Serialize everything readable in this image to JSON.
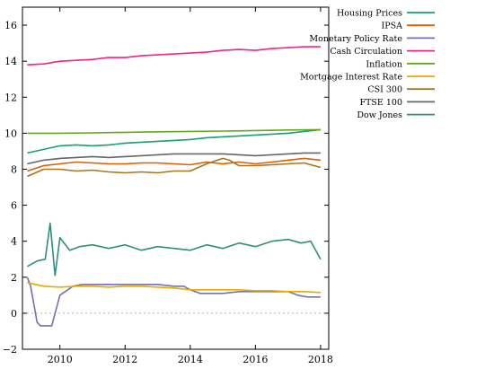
{
  "chart_data": {
    "type": "line",
    "title": "",
    "xlabel": "",
    "ylabel": "",
    "xlim": [
      2008.85,
      2018.25
    ],
    "ylim": [
      -2,
      17
    ],
    "x_ticks": [
      2010,
      2012,
      2014,
      2016,
      2018
    ],
    "x_tick_labels": [
      "2010",
      "2012",
      "2014",
      "2016",
      "2018"
    ],
    "y_ticks": [
      -2,
      0,
      2,
      4,
      6,
      8,
      10,
      12,
      14,
      16
    ],
    "y_tick_labels": [
      "−2",
      "0",
      "2",
      "4",
      "6",
      "8",
      "10",
      "12",
      "14",
      "16"
    ],
    "zero_line": true,
    "grid": false,
    "legend_position": "outside-right",
    "series": [
      {
        "name": "Housing Prices",
        "color": "#1a9e77",
        "x": [
          2009.0,
          2009.5,
          2010.0,
          2010.5,
          2011.0,
          2011.5,
          2012.0,
          2012.5,
          2013.0,
          2013.5,
          2014.0,
          2014.5,
          2015.0,
          2015.5,
          2016.0,
          2016.5,
          2017.0,
          2017.5,
          2018.0
        ],
        "values": [
          8.9,
          9.1,
          9.3,
          9.35,
          9.3,
          9.35,
          9.45,
          9.5,
          9.55,
          9.6,
          9.65,
          9.75,
          9.8,
          9.85,
          9.9,
          9.95,
          10.0,
          10.1,
          10.2
        ]
      },
      {
        "name": "IPSA",
        "color": "#d95f02",
        "x": [
          2009.0,
          2009.5,
          2010.0,
          2010.5,
          2011.0,
          2011.5,
          2012.0,
          2012.5,
          2013.0,
          2013.5,
          2014.0,
          2014.5,
          2015.0,
          2015.5,
          2016.0,
          2016.5,
          2017.0,
          2017.5,
          2018.0
        ],
        "values": [
          7.9,
          8.2,
          8.3,
          8.4,
          8.35,
          8.3,
          8.3,
          8.35,
          8.35,
          8.3,
          8.25,
          8.4,
          8.3,
          8.4,
          8.3,
          8.4,
          8.5,
          8.6,
          8.5
        ]
      },
      {
        "name": "Monetary Policy Rate",
        "color": "#7570b3",
        "x": [
          2009.0,
          2009.1,
          2009.2,
          2009.3,
          2009.4,
          2009.5,
          2009.6,
          2009.75,
          2010.0,
          2010.4,
          2010.7,
          2011.0,
          2011.5,
          2012.0,
          2012.5,
          2013.0,
          2013.5,
          2013.8,
          2014.0,
          2014.3,
          2014.6,
          2015.0,
          2015.5,
          2016.0,
          2016.5,
          2017.0,
          2017.3,
          2017.6,
          2018.0
        ],
        "values": [
          2.0,
          1.5,
          0.5,
          -0.5,
          -0.7,
          -0.7,
          -0.7,
          -0.7,
          1.0,
          1.5,
          1.6,
          1.6,
          1.6,
          1.6,
          1.6,
          1.6,
          1.5,
          1.5,
          1.3,
          1.1,
          1.1,
          1.1,
          1.2,
          1.2,
          1.2,
          1.2,
          1.0,
          0.9,
          0.9
        ]
      },
      {
        "name": "Cash Circulation",
        "color": "#e7298a",
        "x": [
          2009.0,
          2009.5,
          2010.0,
          2010.5,
          2011.0,
          2011.5,
          2012.0,
          2012.5,
          2013.0,
          2013.5,
          2014.0,
          2014.5,
          2015.0,
          2015.5,
          2016.0,
          2016.5,
          2017.0,
          2017.5,
          2018.0
        ],
        "values": [
          13.8,
          13.85,
          14.0,
          14.05,
          14.1,
          14.2,
          14.2,
          14.3,
          14.35,
          14.4,
          14.45,
          14.5,
          14.6,
          14.65,
          14.6,
          14.7,
          14.75,
          14.8,
          14.8
        ]
      },
      {
        "name": "Inflation",
        "color": "#66a61e",
        "x": [
          2009.0,
          2010.0,
          2011.0,
          2012.0,
          2013.0,
          2014.0,
          2015.0,
          2016.0,
          2017.0,
          2018.0
        ],
        "values": [
          10.0,
          10.0,
          10.02,
          10.05,
          10.08,
          10.1,
          10.12,
          10.15,
          10.18,
          10.2
        ]
      },
      {
        "name": "Mortgage Interest Rate",
        "color": "#e6ab02",
        "x": [
          2009.0,
          2009.5,
          2010.0,
          2010.5,
          2011.0,
          2011.5,
          2012.0,
          2012.5,
          2013.0,
          2013.5,
          2014.0,
          2014.5,
          2015.0,
          2015.5,
          2016.0,
          2016.5,
          2017.0,
          2017.5,
          2018.0
        ],
        "values": [
          1.7,
          1.5,
          1.45,
          1.5,
          1.5,
          1.45,
          1.5,
          1.5,
          1.45,
          1.4,
          1.3,
          1.3,
          1.3,
          1.3,
          1.25,
          1.25,
          1.2,
          1.2,
          1.15
        ]
      },
      {
        "name": "CSI 300",
        "color": "#a6761d",
        "x": [
          2009.0,
          2009.5,
          2010.0,
          2010.5,
          2011.0,
          2011.5,
          2012.0,
          2012.5,
          2013.0,
          2013.5,
          2014.0,
          2014.5,
          2015.0,
          2015.2,
          2015.5,
          2016.0,
          2016.5,
          2017.0,
          2017.5,
          2018.0
        ],
        "values": [
          7.6,
          8.0,
          8.0,
          7.9,
          7.95,
          7.85,
          7.8,
          7.85,
          7.8,
          7.9,
          7.9,
          8.3,
          8.6,
          8.5,
          8.2,
          8.2,
          8.25,
          8.3,
          8.35,
          8.1
        ]
      },
      {
        "name": "FTSE 100",
        "color": "#666666",
        "x": [
          2009.0,
          2009.5,
          2010.0,
          2010.5,
          2011.0,
          2011.5,
          2012.0,
          2012.5,
          2013.0,
          2013.5,
          2014.0,
          2014.5,
          2015.0,
          2015.5,
          2016.0,
          2016.5,
          2017.0,
          2017.5,
          2018.0
        ],
        "values": [
          8.3,
          8.5,
          8.6,
          8.65,
          8.7,
          8.65,
          8.7,
          8.75,
          8.8,
          8.85,
          8.85,
          8.85,
          8.85,
          8.8,
          8.75,
          8.8,
          8.85,
          8.9,
          8.9
        ]
      },
      {
        "name": "Dow Jones",
        "color": "#2f8f7a",
        "x": [
          2009.0,
          2009.3,
          2009.55,
          2009.7,
          2009.85,
          2010.0,
          2010.3,
          2010.6,
          2011.0,
          2011.5,
          2012.0,
          2012.5,
          2013.0,
          2013.5,
          2014.0,
          2014.5,
          2015.0,
          2015.5,
          2016.0,
          2016.5,
          2017.0,
          2017.4,
          2017.7,
          2018.0
        ],
        "values": [
          2.6,
          2.9,
          3.0,
          5.0,
          2.1,
          4.2,
          3.5,
          3.7,
          3.8,
          3.6,
          3.8,
          3.5,
          3.7,
          3.6,
          3.5,
          3.8,
          3.6,
          3.9,
          3.7,
          4.0,
          4.1,
          3.9,
          4.0,
          3.0
        ]
      }
    ]
  }
}
